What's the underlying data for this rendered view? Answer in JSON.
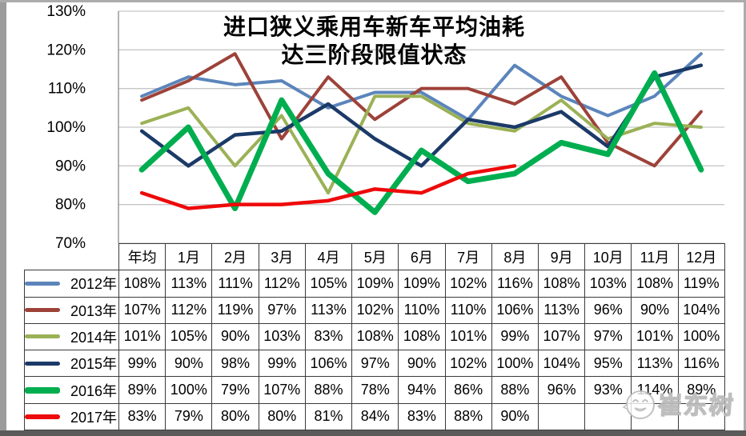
{
  "title": {
    "full": "进口狭义乘用车新车平均油耗 达三阶段限值状态",
    "line1": "进口狭义乘用车新车平均油耗",
    "line2": "达三阶段限值状态"
  },
  "watermark": {
    "text": "崔东树"
  },
  "chart_data": {
    "type": "line",
    "title": "进口狭义乘用车新车平均油耗 达三阶段限值状态",
    "xlabel": "",
    "ylabel": "",
    "categories": [
      "年均",
      "1月",
      "2月",
      "3月",
      "4月",
      "5月",
      "6月",
      "7月",
      "8月",
      "9月",
      "10月",
      "11月",
      "12月"
    ],
    "series": [
      {
        "name": "2012年",
        "color": "#5b85bb",
        "stroke_width": 4,
        "values": [
          108,
          113,
          111,
          112,
          105,
          109,
          109,
          102,
          116,
          108,
          103,
          108,
          119
        ]
      },
      {
        "name": "2013年",
        "color": "#9d4239",
        "stroke_width": 4,
        "values": [
          107,
          112,
          119,
          97,
          113,
          102,
          110,
          110,
          106,
          113,
          96,
          90,
          104
        ]
      },
      {
        "name": "2014年",
        "color": "#9bb156",
        "stroke_width": 4,
        "values": [
          101,
          105,
          90,
          103,
          83,
          108,
          108,
          101,
          99,
          107,
          97,
          101,
          100
        ]
      },
      {
        "name": "2015年",
        "color": "#1b3a68",
        "stroke_width": 4.5,
        "values": [
          99,
          90,
          98,
          99,
          106,
          97,
          90,
          102,
          100,
          104,
          95,
          113,
          116
        ]
      },
      {
        "name": "2016年",
        "color": "#00ae50",
        "stroke_width": 7,
        "values": [
          89,
          100,
          79,
          107,
          88,
          78,
          94,
          86,
          88,
          96,
          93,
          114,
          89
        ]
      },
      {
        "name": "2017年",
        "color": "#ee0a0a",
        "stroke_width": 4.5,
        "values": [
          83,
          79,
          80,
          80,
          81,
          84,
          83,
          88,
          90,
          null,
          null,
          null,
          null
        ]
      }
    ],
    "ylim": [
      70,
      130
    ],
    "ytick_step": 10,
    "ytick_labels": [
      "130%",
      "120%",
      "110%",
      "100%",
      "90%",
      "80%",
      "70%"
    ],
    "value_suffix": "%",
    "grid": "horizontal",
    "legend_position": "table-left-column"
  },
  "colors": {
    "gridline": "#c6c6c6",
    "axis_line": "#8a8a8a",
    "table_border": "#3b3b3b",
    "background": "#ffffff"
  }
}
